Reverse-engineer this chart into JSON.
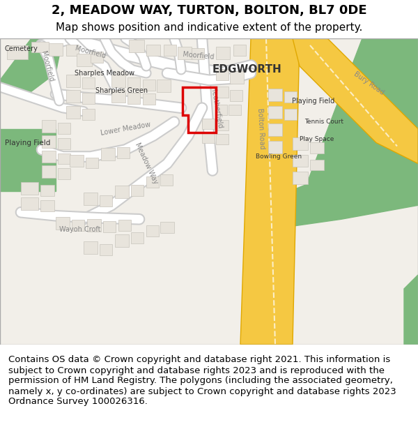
{
  "title_line1": "2, MEADOW WAY, TURTON, BOLTON, BL7 0DE",
  "title_line2": "Map shows position and indicative extent of the property.",
  "footer_text": "Contains OS data © Crown copyright and database right 2021. This information is subject to Crown copyright and database rights 2023 and is reproduced with the permission of HM Land Registry. The polygons (including the associated geometry, namely x, y co-ordinates) are subject to Crown copyright and database rights 2023 Ordnance Survey 100026316.",
  "map_bg": "#f2efe9",
  "road_color": "#ffffff",
  "road_outline": "#cccccc",
  "yellow_road": "#f5c842",
  "yellow_road_outline": "#e0a800",
  "green_area": "#7cb87c",
  "green_area2": "#8fbc8f",
  "building_fill": "#e8e4dc",
  "building_outline": "#c8c4bc",
  "red_outline": "#dd0000",
  "edgworth_label": "EDGWORTH",
  "label_color": "#333333",
  "title_fontsize": 13,
  "subtitle_fontsize": 11,
  "footer_fontsize": 9.5
}
